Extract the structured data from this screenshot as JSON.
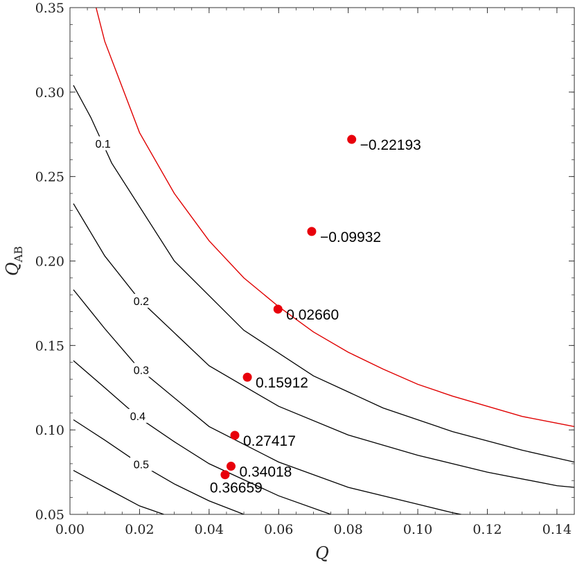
{
  "chart_data": {
    "type": "scatter",
    "x_range": [
      0.0,
      0.145
    ],
    "y_range": [
      0.05,
      0.35
    ],
    "x_ticks": [
      "0.00",
      "0.02",
      "0.04",
      "0.06",
      "0.08",
      "0.10",
      "0.12",
      "0.14"
    ],
    "y_ticks": [
      "0.05",
      "0.10",
      "0.15",
      "0.20",
      "0.25",
      "0.30",
      "0.35"
    ],
    "xlabel": "Q",
    "ylabel_main": "Q",
    "ylabel_sub": "AB",
    "colors": {
      "points": "#e8000b",
      "boundary": "#e00000",
      "contours": "#000000",
      "frame": "#333333"
    },
    "contours": [
      {
        "label": "0.1",
        "k": 0.0065,
        "points": [
          [
            0.001,
            0.304
          ],
          [
            0.006,
            0.285
          ],
          [
            0.012,
            0.258
          ],
          [
            0.03,
            0.2
          ],
          [
            0.05,
            0.159
          ],
          [
            0.07,
            0.132
          ],
          [
            0.09,
            0.113
          ],
          [
            0.11,
            0.099
          ],
          [
            0.13,
            0.088
          ],
          [
            0.145,
            0.081
          ]
        ]
      },
      {
        "label": "0.2",
        "k": 0.0035,
        "points": [
          [
            0.001,
            0.234
          ],
          [
            0.01,
            0.203
          ],
          [
            0.02,
            0.177
          ],
          [
            0.04,
            0.138
          ],
          [
            0.06,
            0.114
          ],
          [
            0.08,
            0.097
          ],
          [
            0.1,
            0.085
          ],
          [
            0.12,
            0.075
          ],
          [
            0.14,
            0.067
          ],
          [
            0.145,
            0.066
          ]
        ]
      },
      {
        "label": "0.3",
        "k": 0.00135,
        "points": [
          [
            0.001,
            0.183
          ],
          [
            0.01,
            0.16
          ],
          [
            0.02,
            0.136
          ],
          [
            0.04,
            0.102
          ],
          [
            0.06,
            0.081
          ],
          [
            0.08,
            0.066
          ],
          [
            0.1,
            0.056
          ],
          [
            0.11,
            0.051
          ],
          [
            0.1125,
            0.05
          ]
        ]
      },
      {
        "label": "0.4",
        "k": 0.00088,
        "points": [
          [
            0.001,
            0.141
          ],
          [
            0.01,
            0.125
          ],
          [
            0.02,
            0.107
          ],
          [
            0.03,
            0.093
          ],
          [
            0.04,
            0.08
          ],
          [
            0.06,
            0.061
          ],
          [
            0.075,
            0.05
          ]
        ]
      },
      {
        "label": "0.5",
        "k": 0.00055,
        "points": [
          [
            0.001,
            0.106
          ],
          [
            0.01,
            0.094
          ],
          [
            0.02,
            0.08
          ],
          [
            0.03,
            0.068
          ],
          [
            0.04,
            0.058
          ],
          [
            0.05,
            0.05
          ]
        ]
      },
      {
        "label": "",
        "k": 0.0003,
        "points": [
          [
            0.001,
            0.076
          ],
          [
            0.01,
            0.066
          ],
          [
            0.02,
            0.055
          ],
          [
            0.027,
            0.05
          ]
        ]
      }
    ],
    "boundary": [
      [
        0.0075,
        0.35
      ],
      [
        0.01,
        0.33
      ],
      [
        0.02,
        0.276
      ],
      [
        0.03,
        0.24
      ],
      [
        0.04,
        0.212
      ],
      [
        0.05,
        0.19
      ],
      [
        0.06,
        0.173
      ],
      [
        0.07,
        0.158
      ],
      [
        0.08,
        0.146
      ],
      [
        0.09,
        0.136
      ],
      [
        0.1,
        0.127
      ],
      [
        0.11,
        0.12
      ],
      [
        0.12,
        0.114
      ],
      [
        0.13,
        0.108
      ],
      [
        0.14,
        0.104
      ],
      [
        0.145,
        0.102
      ]
    ],
    "points": [
      {
        "x": 0.081,
        "y": 0.272,
        "label": "−0.22193"
      },
      {
        "x": 0.0695,
        "y": 0.2175,
        "label": "−0.09932"
      },
      {
        "x": 0.0598,
        "y": 0.1715,
        "label": "0.02660"
      },
      {
        "x": 0.051,
        "y": 0.1312,
        "label": "0.15912"
      },
      {
        "x": 0.0474,
        "y": 0.0968,
        "label": "0.27417"
      },
      {
        "x": 0.0463,
        "y": 0.0785,
        "label": "0.34018"
      },
      {
        "x": 0.0446,
        "y": 0.0735,
        "label": "0.36659"
      }
    ]
  }
}
